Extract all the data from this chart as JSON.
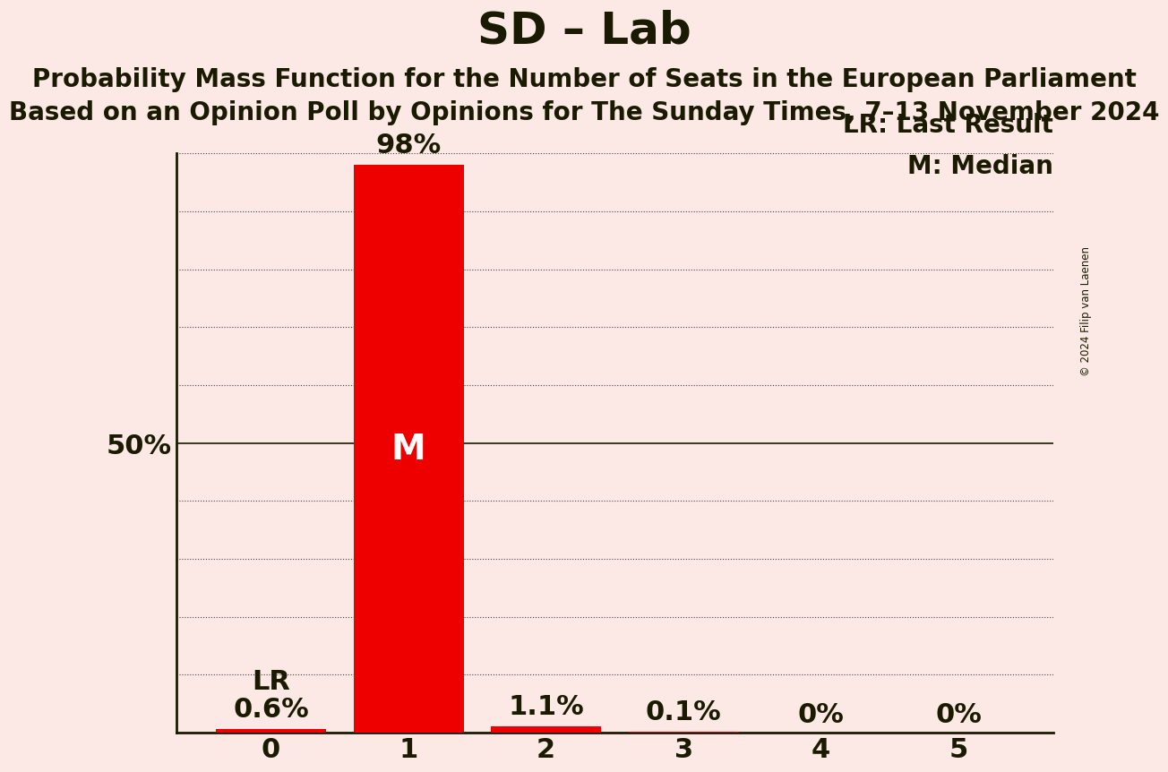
{
  "title": "SD – Lab",
  "subtitle1": "Probability Mass Function for the Number of Seats in the European Parliament",
  "subtitle2": "Based on an Opinion Poll by Opinions for The Sunday Times, 7–13 November 2024",
  "copyright": "© 2024 Filip van Laenen",
  "categories": [
    0,
    1,
    2,
    3,
    4,
    5
  ],
  "values": [
    0.006,
    0.98,
    0.011,
    0.001,
    0.0,
    0.0
  ],
  "bar_labels": [
    "0.6%",
    "98%",
    "1.1%",
    "0.1%",
    "0%",
    "0%"
  ],
  "bar_color": "#ee0000",
  "background_color": "#fce8e4",
  "text_color": "#1a1a00",
  "median_seat": 1,
  "last_result_seat": 0,
  "lr_label": "LR",
  "median_label": "M",
  "legend_lr": "LR: Last Result",
  "legend_m": "M: Median",
  "ylim": [
    0,
    1.0
  ],
  "yticks": [
    0.0,
    0.1,
    0.2,
    0.3,
    0.4,
    0.5,
    0.6,
    0.7,
    0.8,
    0.9,
    1.0
  ],
  "ytick_labels": [
    "",
    "",
    "",
    "",
    "",
    "50%",
    "",
    "",
    "",
    "",
    ""
  ],
  "title_fontsize": 36,
  "subtitle_fontsize": 20,
  "bar_label_fontsize": 22,
  "axis_fontsize": 22,
  "legend_fontsize": 20,
  "median_label_fontsize": 28,
  "lr_label_fontsize": 22
}
